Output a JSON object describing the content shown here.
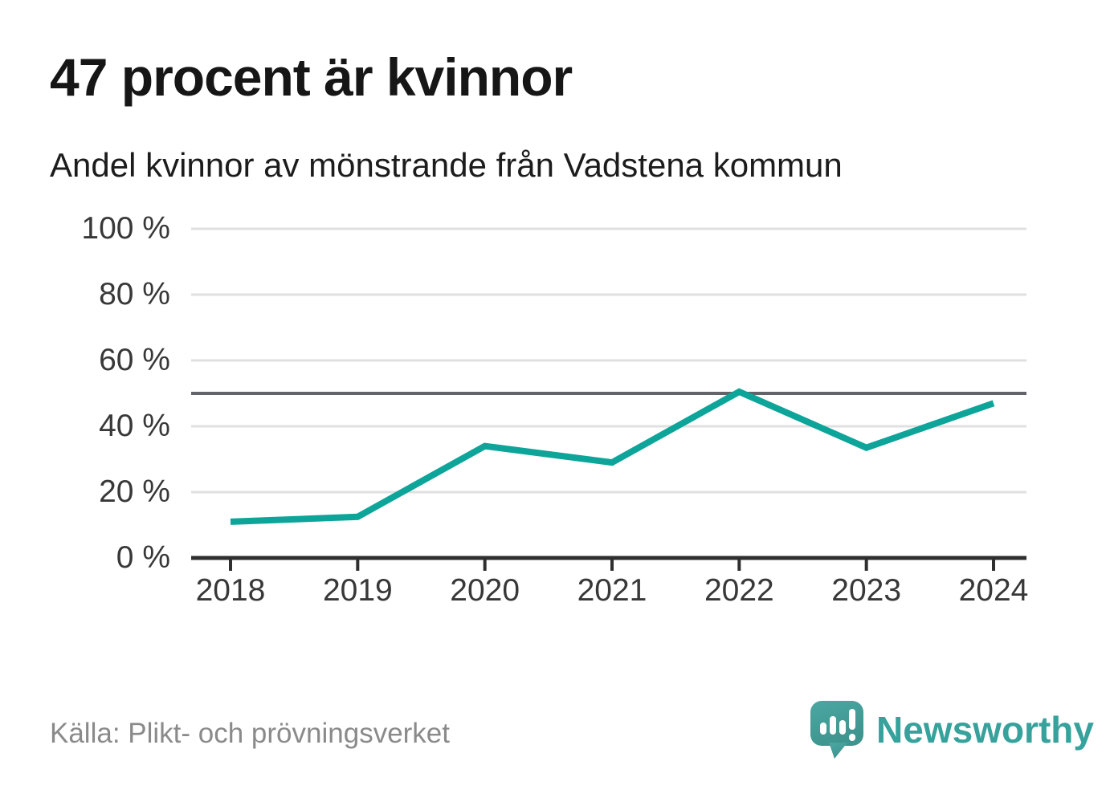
{
  "header": {
    "title": "47 procent är kvinnor",
    "subtitle": "Andel kvinnor av mönstrande från Vadstena kommun"
  },
  "footer": {
    "source": "Källa: Plikt- och prövningsverket",
    "brand": {
      "name": "Newsworthy",
      "logo_icon": "speech-bubble-bar-chart-exclamation-icon"
    }
  },
  "colors": {
    "background": "#ffffff",
    "line": "#0da499",
    "grid": "#e0e0e0",
    "reference_line": "#63636a",
    "axis": "#2f2f2f",
    "tick_label": "#383838",
    "title_text": "#161616",
    "source_text": "#8a8a8a",
    "brand_teal": "#37a29c",
    "logo_fill_top": "#4ba7a2",
    "logo_fill_bottom": "#3e948e"
  },
  "chart_data": {
    "type": "line",
    "title": "47 procent är kvinnor",
    "subtitle": "Andel kvinnor av mönstrande från Vadstena kommun",
    "x": [
      "2018",
      "2019",
      "2020",
      "2021",
      "2022",
      "2023",
      "2024"
    ],
    "series": [
      {
        "name": "Andel kvinnor av mönstrande",
        "values": [
          11,
          12.5,
          34,
          29,
          50.5,
          33.5,
          47
        ]
      }
    ],
    "unit": "%",
    "ylim": [
      0,
      100
    ],
    "yticks": [
      0,
      20,
      40,
      60,
      80,
      100
    ],
    "ytick_format": "{v} %",
    "reference_line": 50,
    "grid": "horizontal",
    "legend": "none",
    "source": "Källa: Plikt- och prövningsverket"
  }
}
